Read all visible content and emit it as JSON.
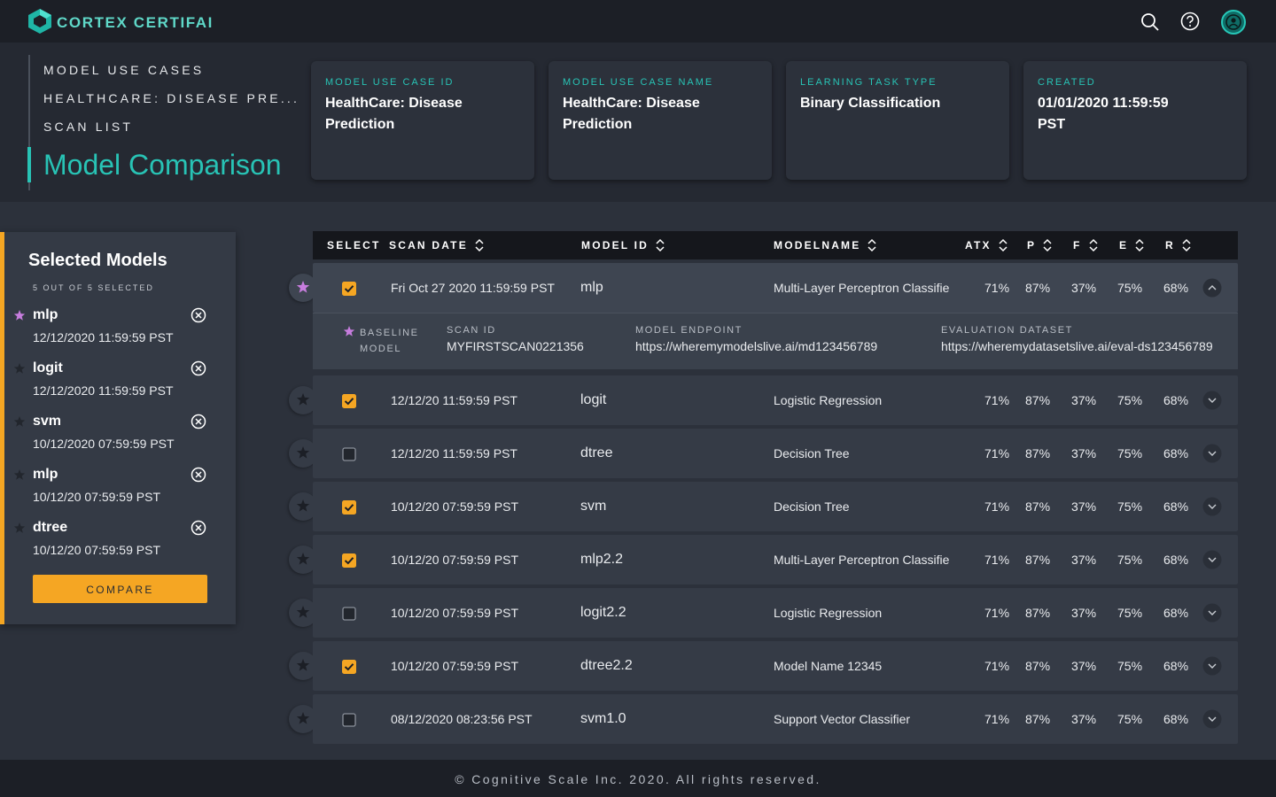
{
  "header": {
    "brand": "CORTEX CERTIFAI"
  },
  "breadcrumbs": [
    "MODEL USE CASES",
    "HEALTHCARE: DISEASE PRE...",
    "SCAN LIST"
  ],
  "page_title": "Model Comparison",
  "info_cards": [
    {
      "label": "MODEL USE CASE ID",
      "value": "HealthCare: Disease Prediction"
    },
    {
      "label": "MODEL USE CASE NAME",
      "value": "HealthCare: Disease Prediction"
    },
    {
      "label": "LEARNING TASK TYPE",
      "value": "Binary Classification"
    },
    {
      "label": "CREATED",
      "value": "01/01/2020 11:59:59 PST"
    }
  ],
  "selected_panel": {
    "title": "Selected Models",
    "count": "5 OUT OF 5 SELECTED",
    "models": [
      {
        "name": "mlp",
        "date": "12/12/2020 11:59:59 PST",
        "baseline": true
      },
      {
        "name": "logit",
        "date": "12/12/2020 11:59:59 PST",
        "baseline": false
      },
      {
        "name": "svm",
        "date": "10/12/2020 07:59:59 PST",
        "baseline": false
      },
      {
        "name": "mlp",
        "date": "10/12/20 07:59:59 PST",
        "baseline": false
      },
      {
        "name": "dtree",
        "date": "10/12/20 07:59:59 PST",
        "baseline": false
      }
    ],
    "button": "COMPARE"
  },
  "table": {
    "columns": [
      "SELECT",
      "SCAN DATE",
      "MODEL ID",
      "MODELNAME",
      "ATX",
      "P",
      "F",
      "E",
      "R"
    ],
    "rows": [
      {
        "scan_date": "Fri Oct 27 2020 11:59:59 PST",
        "model_id": "mlp",
        "model_name": "Multi-Layer Perceptron Classifie",
        "atx": "71%",
        "p": "87%",
        "f": "37%",
        "e": "75%",
        "r": "68%",
        "selected": true,
        "baseline": true,
        "details": {
          "baseline_label": "BASELINE MODEL",
          "scan_id_label": "SCAN ID",
          "scan_id": "MYFIRSTSCAN0221356",
          "endpoint_label": "MODEL ENDPOINT",
          "endpoint": "https://wheremymodelslive.ai/md123456789",
          "dataset_label": "EVALUATION DATASET",
          "dataset": "https://wheremydatasetslive.ai/eval-ds123456789"
        }
      },
      {
        "scan_date": "12/12/20 11:59:59 PST",
        "model_id": "logit",
        "model_name": "Logistic Regression",
        "atx": "71%",
        "p": "87%",
        "f": "37%",
        "e": "75%",
        "r": "68%",
        "selected": true,
        "baseline": false
      },
      {
        "scan_date": "12/12/20 11:59:59 PST",
        "model_id": "dtree",
        "model_name": "Decision Tree",
        "atx": "71%",
        "p": "87%",
        "f": "37%",
        "e": "75%",
        "r": "68%",
        "selected": false,
        "baseline": false
      },
      {
        "scan_date": "10/12/20 07:59:59 PST",
        "model_id": "svm",
        "model_name": "Decision Tree",
        "atx": "71%",
        "p": "87%",
        "f": "37%",
        "e": "75%",
        "r": "68%",
        "selected": true,
        "baseline": false
      },
      {
        "scan_date": "10/12/20 07:59:59 PST",
        "model_id": "mlp2.2",
        "model_name": "Multi-Layer Perceptron Classifie",
        "atx": "71%",
        "p": "87%",
        "f": "37%",
        "e": "75%",
        "r": "68%",
        "selected": true,
        "baseline": false
      },
      {
        "scan_date": "10/12/20 07:59:59 PST",
        "model_id": "logit2.2",
        "model_name": "Logistic Regression",
        "atx": "71%",
        "p": "87%",
        "f": "37%",
        "e": "75%",
        "r": "68%",
        "selected": false,
        "baseline": false
      },
      {
        "scan_date": "10/12/20 07:59:59 PST",
        "model_id": "dtree2.2",
        "model_name": "Model Name 12345",
        "atx": "71%",
        "p": "87%",
        "f": "37%",
        "e": "75%",
        "r": "68%",
        "selected": true,
        "baseline": false
      },
      {
        "scan_date": "08/12/2020 08:23:56 PST",
        "model_id": "svm1.0",
        "model_name": "Support Vector Classifier",
        "atx": "71%",
        "p": "87%",
        "f": "37%",
        "e": "75%",
        "r": "68%",
        "selected": false,
        "baseline": false
      }
    ]
  },
  "footer": "© Cognitive Scale Inc. 2020. All rights reserved."
}
